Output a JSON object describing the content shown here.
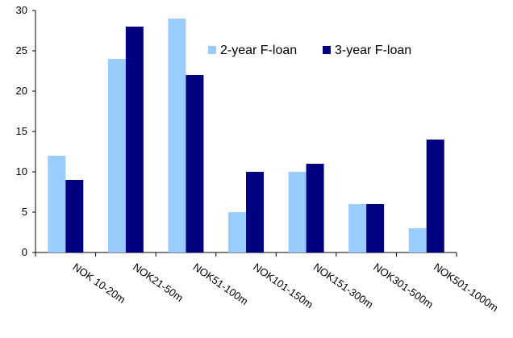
{
  "chart_data": {
    "type": "bar",
    "categories": [
      "NOK 10-20m",
      "NOK21-50m",
      "NOK51-100m",
      "NOK101-150m",
      "NOK151-300m",
      "NOK301-500m",
      "NOK501-1000m"
    ],
    "series": [
      {
        "name": "2-year F-loan",
        "values": [
          12,
          24,
          29,
          5,
          10,
          6,
          3
        ],
        "color": "#99ccff"
      },
      {
        "name": "3-year F-loan",
        "values": [
          9,
          28,
          22,
          10,
          11,
          6,
          14
        ],
        "color": "#000080"
      }
    ],
    "ylim": [
      0,
      30
    ],
    "yticks": [
      0,
      5,
      10,
      15,
      20,
      25,
      30
    ],
    "grid": false,
    "legend_position": "top-right",
    "title": "",
    "xlabel": "",
    "ylabel": ""
  }
}
